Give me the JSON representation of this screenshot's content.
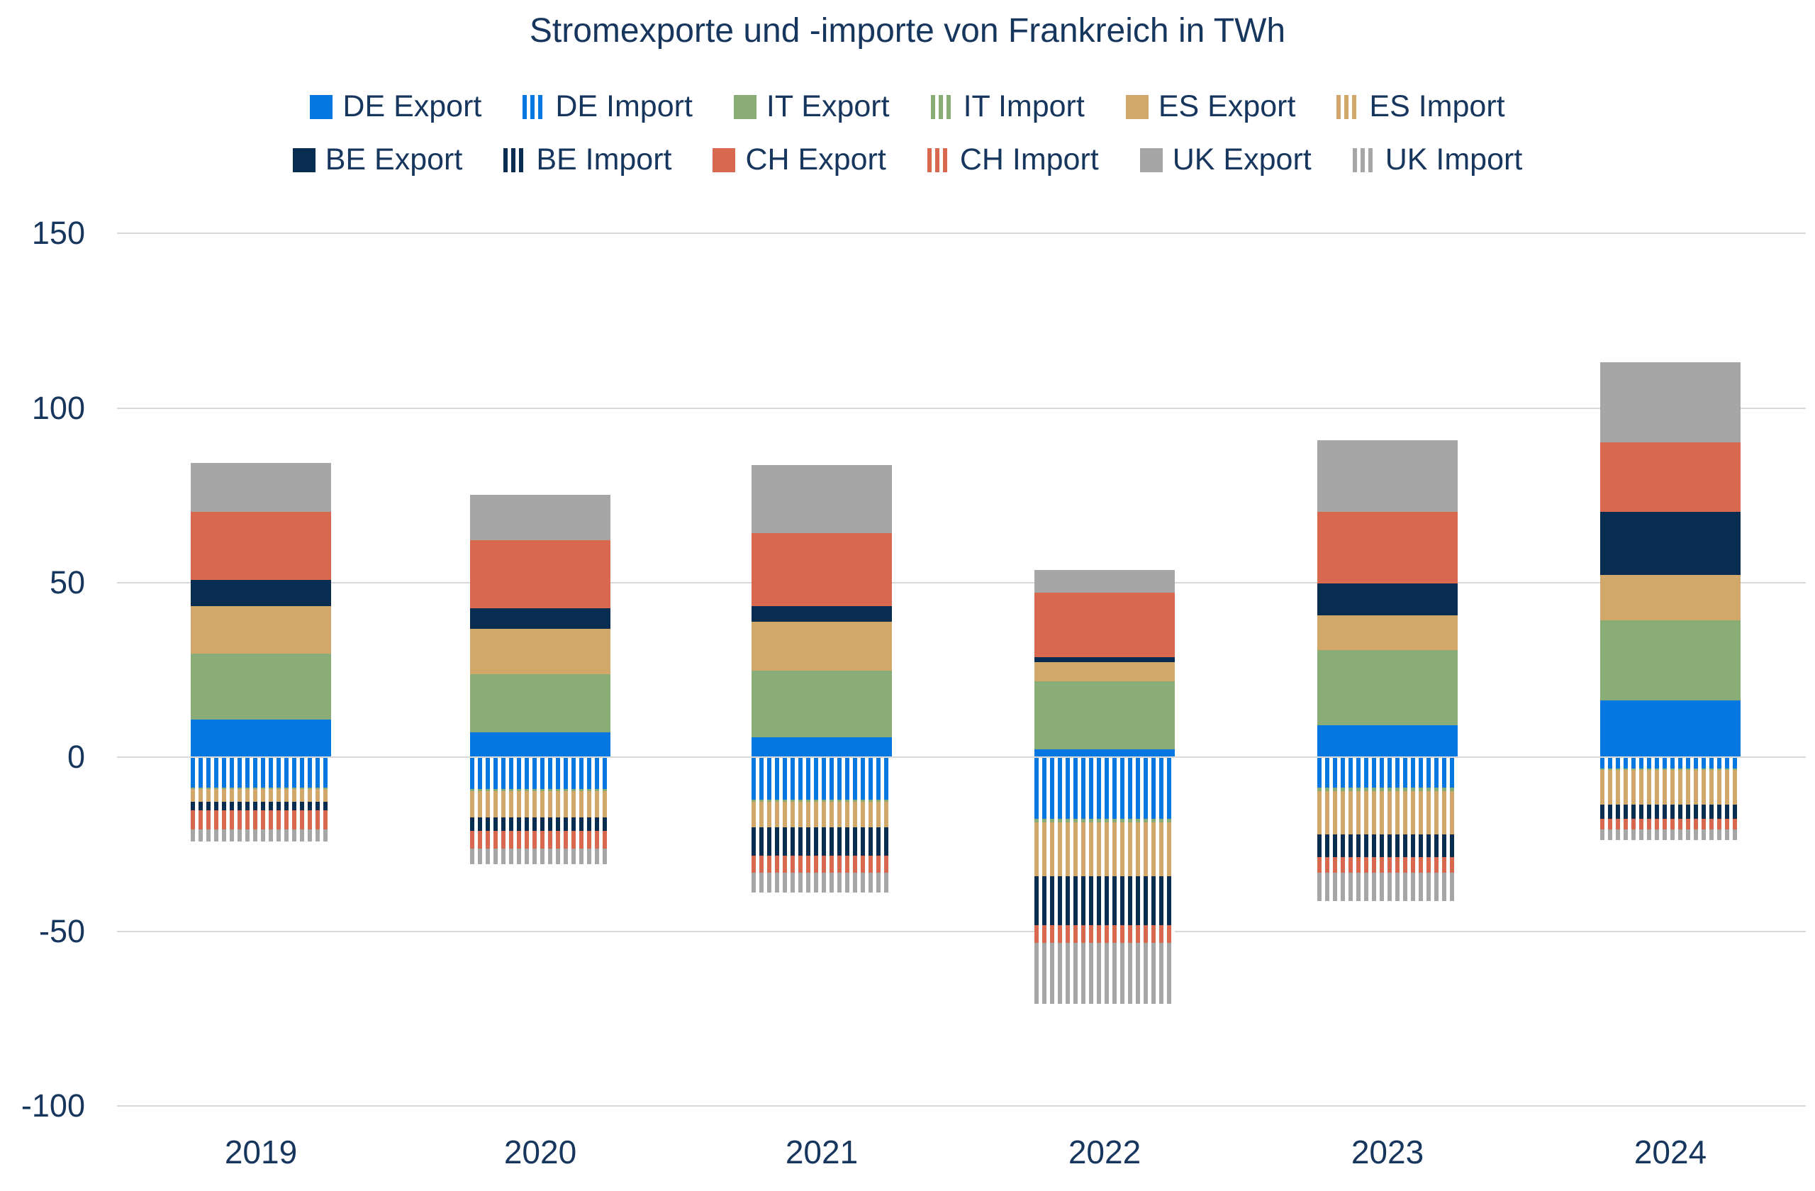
{
  "title": "Stromexporte und -importe von Frankreich in TWh",
  "theme": {
    "text_color": "#17365d",
    "gridline_color": "#d9d9d9",
    "background": "#ffffff"
  },
  "chart_data": {
    "type": "bar",
    "stacked": true,
    "title": "Stromexporte und -importe von Frankreich in TWh",
    "unit": "TWh",
    "xlabel": "",
    "ylabel": "TWh",
    "ylim": [
      -100,
      150
    ],
    "yticks": [
      150,
      100,
      50,
      0,
      -50,
      -100
    ],
    "grid": true,
    "legend_position": "top",
    "legend_rows": 2,
    "categories": [
      "2019",
      "2020",
      "2021",
      "2022",
      "2023",
      "2024"
    ],
    "series": [
      {
        "name": "DE Export",
        "country": "Germany",
        "direction": "export",
        "pattern": "solid",
        "color": "#0577e0",
        "values": [
          10.5,
          7,
          5.5,
          2,
          9,
          16
        ]
      },
      {
        "name": "DE Import",
        "country": "Germany",
        "direction": "import",
        "pattern": "striped",
        "color": "#0577e0",
        "values": [
          -8.5,
          -9,
          -12,
          -17.5,
          -8.5,
          -3
        ]
      },
      {
        "name": "IT Export",
        "country": "Italy",
        "direction": "export",
        "pattern": "solid",
        "color": "#8aac77",
        "values": [
          19,
          16.5,
          19,
          19.5,
          21.5,
          23
        ]
      },
      {
        "name": "IT Import",
        "country": "Italy",
        "direction": "import",
        "pattern": "striped",
        "color": "#8aac77",
        "values": [
          -0.5,
          -0.5,
          -0.5,
          -1,
          -1,
          -0.5
        ]
      },
      {
        "name": "ES Export",
        "country": "Spain",
        "direction": "export",
        "pattern": "solid",
        "color": "#d1a869",
        "values": [
          13.5,
          13,
          14,
          5.5,
          10,
          13
        ]
      },
      {
        "name": "ES Import",
        "country": "Spain",
        "direction": "import",
        "pattern": "striped",
        "color": "#d1a869",
        "values": [
          -3.5,
          -7.5,
          -7.5,
          -15.5,
          -12.5,
          -10
        ]
      },
      {
        "name": "BE Export",
        "country": "Belgium",
        "direction": "export",
        "pattern": "solid",
        "color": "#092d50",
        "values": [
          7.5,
          6,
          4.5,
          1.5,
          9,
          18
        ]
      },
      {
        "name": "BE Import",
        "country": "Belgium",
        "direction": "import",
        "pattern": "striped",
        "color": "#092d50",
        "values": [
          -2.5,
          -4,
          -8,
          -14,
          -6.5,
          -4
        ]
      },
      {
        "name": "CH Export",
        "country": "Switzerland",
        "direction": "export",
        "pattern": "solid",
        "color": "#d8694f",
        "values": [
          19.5,
          19.5,
          21,
          18.5,
          20.5,
          20
        ]
      },
      {
        "name": "CH Import",
        "country": "Switzerland",
        "direction": "import",
        "pattern": "striped",
        "color": "#d8694f",
        "values": [
          -5.5,
          -5,
          -5,
          -5,
          -4.5,
          -3
        ]
      },
      {
        "name": "UK Export",
        "country": "United Kingdom",
        "direction": "export",
        "pattern": "solid",
        "color": "#a6a6a6",
        "values": [
          14,
          13,
          19.5,
          6.5,
          20.5,
          23
        ]
      },
      {
        "name": "UK Import",
        "country": "United Kingdom",
        "direction": "import",
        "pattern": "striped",
        "color": "#a6a6a6",
        "values": [
          -3.5,
          -4.5,
          -5.5,
          -17.5,
          -8,
          -3
        ]
      }
    ]
  }
}
